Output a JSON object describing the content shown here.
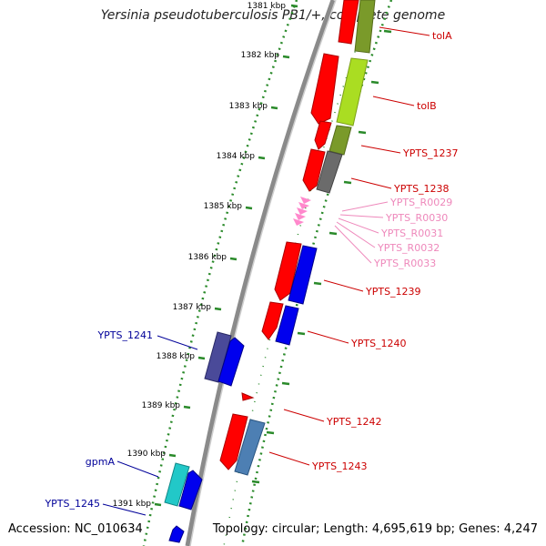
{
  "title": "Yersinia pseudotuberculosis PB1/+, complete genome",
  "accession": "Accession: NC_010634",
  "topology": "Topology: circular; Length: 4,695,619 bp; Genes: 4,247",
  "colors": {
    "forward_gene": "#ff0000",
    "reverse_gene": "#0000ff",
    "rna": "#ff88cc",
    "tick": "#2a8a2a",
    "backbone": "#888888",
    "right_label": "#cc0000",
    "left_label": "#000099",
    "rna_label": "#ee88bb"
  },
  "kbp_ticks": [
    {
      "id": "1381",
      "label": "1381 kbp"
    },
    {
      "id": "1382",
      "label": "1382 kbp"
    },
    {
      "id": "1383",
      "label": "1383 kbp"
    },
    {
      "id": "1384",
      "label": "1384 kbp"
    },
    {
      "id": "1385",
      "label": "1385 kbp"
    },
    {
      "id": "1386",
      "label": "1386 kbp"
    },
    {
      "id": "1387",
      "label": "1387 kbp"
    },
    {
      "id": "1388",
      "label": "1388 kbp"
    },
    {
      "id": "1389",
      "label": "1389 kbp"
    },
    {
      "id": "1390",
      "label": "1390 kbp"
    },
    {
      "id": "1391",
      "label": "1391 kbp"
    }
  ],
  "right_labels": [
    {
      "id": "tolA",
      "text": "tolA",
      "kind": "gene"
    },
    {
      "id": "tolB",
      "text": "tolB",
      "kind": "gene"
    },
    {
      "id": "YPTS_1237",
      "text": "YPTS_1237",
      "kind": "gene"
    },
    {
      "id": "YPTS_1238",
      "text": "YPTS_1238",
      "kind": "gene"
    },
    {
      "id": "YPTS_R0029",
      "text": "YPTS_R0029",
      "kind": "rna"
    },
    {
      "id": "YPTS_R0030",
      "text": "YPTS_R0030",
      "kind": "rna"
    },
    {
      "id": "YPTS_R0031",
      "text": "YPTS_R0031",
      "kind": "rna"
    },
    {
      "id": "YPTS_R0032",
      "text": "YPTS_R0032",
      "kind": "rna"
    },
    {
      "id": "YPTS_R0033",
      "text": "YPTS_R0033",
      "kind": "rna"
    },
    {
      "id": "YPTS_1239",
      "text": "YPTS_1239",
      "kind": "gene"
    },
    {
      "id": "YPTS_1240",
      "text": "YPTS_1240",
      "kind": "gene"
    },
    {
      "id": "YPTS_1242",
      "text": "YPTS_1242",
      "kind": "gene"
    },
    {
      "id": "YPTS_1243",
      "text": "YPTS_1243",
      "kind": "gene"
    }
  ],
  "left_labels": [
    {
      "id": "YPTS_1241",
      "text": "YPTS_1241"
    },
    {
      "id": "gpmA",
      "text": "gpmA"
    },
    {
      "id": "YPTS_1245",
      "text": "YPTS_1245"
    }
  ]
}
